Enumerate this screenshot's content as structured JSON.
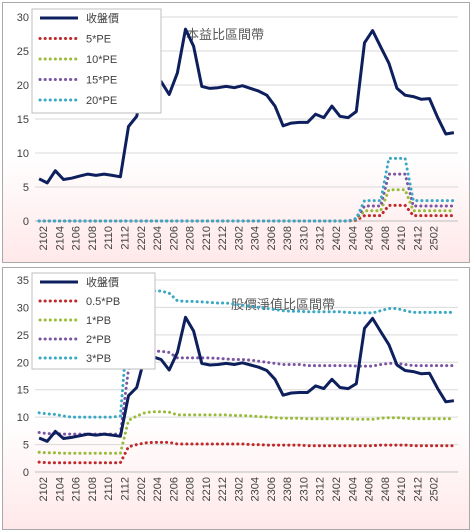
{
  "chart_data": [
    {
      "type": "line",
      "title": "",
      "band_label": "本益比區間帶",
      "x_ticks": [
        "2102",
        "2104",
        "2106",
        "2108",
        "2110",
        "2112",
        "2202",
        "2204",
        "2206",
        "2208",
        "2210",
        "2212",
        "2302",
        "2304",
        "2306",
        "2308",
        "2310",
        "2312",
        "2402",
        "2404",
        "2406",
        "2408",
        "2410",
        "2412",
        "2502"
      ],
      "ylim": [
        0,
        30
      ],
      "y_ticks": [
        0,
        5,
        10,
        15,
        20,
        25,
        30
      ],
      "legend_position": "top-left",
      "series": [
        {
          "name": "收盤價",
          "color": "#0d1f5c",
          "style": "solid",
          "values": [
            6.2,
            5.6,
            7.4,
            6.1,
            6.3,
            6.6,
            6.9,
            6.7,
            6.9,
            6.7,
            6.5,
            13.9,
            15.4,
            21.0,
            21.0,
            20.5,
            18.6,
            21.8,
            28.2,
            25.7,
            19.8,
            19.5,
            19.6,
            19.8,
            19.6,
            19.9,
            19.5,
            19.1,
            18.5,
            16.9,
            14.0,
            14.4,
            14.5,
            14.5,
            15.7,
            15.2,
            16.9,
            15.4,
            15.2,
            16.1,
            26.2,
            28.0,
            25.6,
            23.2,
            19.5,
            18.5,
            18.3,
            17.9,
            18.0,
            15.2,
            12.8,
            13.0
          ]
        },
        {
          "name": "5*PE",
          "color": "#c0282a",
          "style": "dotted",
          "values": [
            0,
            0,
            0,
            0,
            0,
            0,
            0,
            0,
            0,
            0,
            0,
            0,
            0,
            0,
            0,
            0,
            0,
            0,
            0,
            0,
            0,
            0,
            0,
            0,
            0,
            0,
            0,
            0,
            0,
            0,
            0,
            0,
            0,
            0,
            0,
            0,
            0,
            0,
            0,
            0.1,
            0.8,
            0.8,
            0.8,
            2.3,
            2.3,
            2.3,
            0.8,
            0.8,
            0.8,
            0.8,
            0.8,
            0.8
          ]
        },
        {
          "name": "10*PE",
          "color": "#9bbb3b",
          "style": "dotted",
          "values": [
            0,
            0,
            0,
            0,
            0,
            0,
            0,
            0,
            0,
            0,
            0,
            0,
            0,
            0,
            0,
            0,
            0,
            0,
            0,
            0,
            0,
            0,
            0,
            0,
            0,
            0,
            0,
            0,
            0,
            0,
            0,
            0,
            0,
            0,
            0,
            0,
            0,
            0,
            0,
            0.2,
            1.5,
            1.5,
            1.5,
            4.6,
            4.6,
            4.6,
            1.5,
            1.5,
            1.5,
            1.5,
            1.5,
            1.5
          ]
        },
        {
          "name": "15*PE",
          "color": "#7a55a3",
          "style": "dotted",
          "values": [
            0,
            0,
            0,
            0,
            0,
            0,
            0,
            0,
            0,
            0,
            0,
            0,
            0,
            0,
            0,
            0,
            0,
            0,
            0,
            0,
            0,
            0,
            0,
            0,
            0,
            0,
            0,
            0,
            0,
            0,
            0,
            0,
            0,
            0,
            0,
            0,
            0,
            0,
            0,
            0.3,
            2.2,
            2.2,
            2.2,
            6.9,
            6.9,
            6.9,
            2.2,
            2.2,
            2.2,
            2.2,
            2.2,
            2.2
          ]
        },
        {
          "name": "20*PE",
          "color": "#3aa8c4",
          "style": "dotted",
          "values": [
            0,
            0,
            0,
            0,
            0,
            0,
            0,
            0,
            0,
            0,
            0,
            0,
            0,
            0,
            0,
            0,
            0,
            0,
            0,
            0,
            0,
            0,
            0,
            0,
            0,
            0,
            0,
            0,
            0,
            0,
            0,
            0,
            0,
            0,
            0,
            0,
            0,
            0,
            0,
            0.4,
            3.0,
            3.0,
            3.0,
            9.2,
            9.2,
            9.2,
            3.0,
            3.0,
            3.0,
            3.0,
            3.0,
            3.0
          ]
        }
      ]
    },
    {
      "type": "line",
      "title": "",
      "band_label": "股價淨值比區間帶",
      "x_ticks": [
        "2102",
        "2104",
        "2106",
        "2108",
        "2110",
        "2112",
        "2202",
        "2204",
        "2206",
        "2208",
        "2210",
        "2212",
        "2302",
        "2304",
        "2306",
        "2308",
        "2310",
        "2312",
        "2402",
        "2404",
        "2406",
        "2408",
        "2410",
        "2412",
        "2502"
      ],
      "ylim": [
        0,
        35
      ],
      "y_ticks": [
        0,
        5,
        10,
        15,
        20,
        25,
        30,
        35
      ],
      "legend_position": "top-left",
      "series": [
        {
          "name": "收盤價",
          "color": "#0d1f5c",
          "style": "solid",
          "values": [
            6.2,
            5.6,
            7.4,
            6.1,
            6.3,
            6.6,
            6.9,
            6.7,
            6.9,
            6.7,
            6.5,
            13.9,
            15.4,
            21.0,
            21.0,
            20.5,
            18.6,
            21.8,
            28.2,
            25.7,
            19.8,
            19.5,
            19.6,
            19.8,
            19.6,
            19.9,
            19.5,
            19.1,
            18.5,
            16.9,
            14.0,
            14.4,
            14.5,
            14.5,
            15.7,
            15.2,
            16.9,
            15.4,
            15.2,
            16.1,
            26.2,
            28.0,
            25.6,
            23.2,
            19.5,
            18.5,
            18.3,
            17.9,
            18.0,
            15.2,
            12.8,
            13.0
          ]
        },
        {
          "name": "0.5*PB",
          "color": "#c0282a",
          "style": "dotted",
          "values": [
            1.8,
            1.7,
            1.7,
            1.7,
            1.7,
            1.7,
            1.7,
            1.7,
            1.7,
            1.7,
            1.7,
            4.6,
            5.0,
            5.3,
            5.4,
            5.4,
            5.4,
            5.1,
            5.1,
            5.1,
            5.1,
            5.1,
            5.1,
            5.1,
            5.1,
            5.1,
            5.0,
            5.0,
            4.9,
            4.9,
            4.9,
            4.9,
            4.9,
            4.8,
            4.8,
            4.8,
            4.8,
            4.8,
            4.8,
            4.8,
            4.8,
            4.8,
            4.9,
            4.9,
            4.9,
            4.9,
            4.8,
            4.8,
            4.8,
            4.8,
            4.8,
            4.8
          ]
        },
        {
          "name": "1*PB",
          "color": "#9bbb3b",
          "style": "dotted",
          "values": [
            3.6,
            3.5,
            3.5,
            3.4,
            3.4,
            3.4,
            3.4,
            3.4,
            3.4,
            3.4,
            3.4,
            9.4,
            10.2,
            10.8,
            11.0,
            11.0,
            10.9,
            10.4,
            10.4,
            10.4,
            10.4,
            10.4,
            10.4,
            10.4,
            10.3,
            10.3,
            10.2,
            10.1,
            10.0,
            9.9,
            9.8,
            9.8,
            9.8,
            9.7,
            9.7,
            9.7,
            9.7,
            9.7,
            9.7,
            9.6,
            9.6,
            9.6,
            9.8,
            9.9,
            9.9,
            9.8,
            9.7,
            9.7,
            9.7,
            9.7,
            9.7,
            9.7
          ]
        },
        {
          "name": "2*PB",
          "color": "#7a55a3",
          "style": "dotted",
          "values": [
            7.2,
            7.0,
            7.0,
            6.9,
            6.9,
            6.9,
            6.9,
            6.9,
            6.9,
            6.9,
            6.9,
            18.8,
            20.4,
            21.6,
            22.0,
            22.0,
            21.8,
            20.8,
            20.8,
            20.8,
            20.8,
            20.8,
            20.7,
            20.6,
            20.5,
            20.5,
            20.4,
            20.2,
            20.0,
            19.8,
            19.6,
            19.6,
            19.6,
            19.4,
            19.4,
            19.4,
            19.4,
            19.4,
            19.4,
            19.3,
            19.3,
            19.3,
            19.6,
            19.8,
            19.8,
            19.6,
            19.4,
            19.4,
            19.4,
            19.4,
            19.4,
            19.4
          ]
        },
        {
          "name": "3*PB",
          "color": "#3aa8c4",
          "style": "dotted",
          "values": [
            10.8,
            10.6,
            10.5,
            10.2,
            10.0,
            10.0,
            10.0,
            10.0,
            10.0,
            10.0,
            10.2,
            28.2,
            30.6,
            32.4,
            33.0,
            33.0,
            32.6,
            31.2,
            31.1,
            31.1,
            31.0,
            30.9,
            30.8,
            30.8,
            30.6,
            30.4,
            30.2,
            30.0,
            29.8,
            29.6,
            29.4,
            29.3,
            29.3,
            29.2,
            29.2,
            29.2,
            29.2,
            29.2,
            29.1,
            29.0,
            29.0,
            29.0,
            29.4,
            29.8,
            29.8,
            29.4,
            29.1,
            29.1,
            29.1,
            29.1,
            29.1,
            29.1
          ]
        }
      ]
    }
  ]
}
